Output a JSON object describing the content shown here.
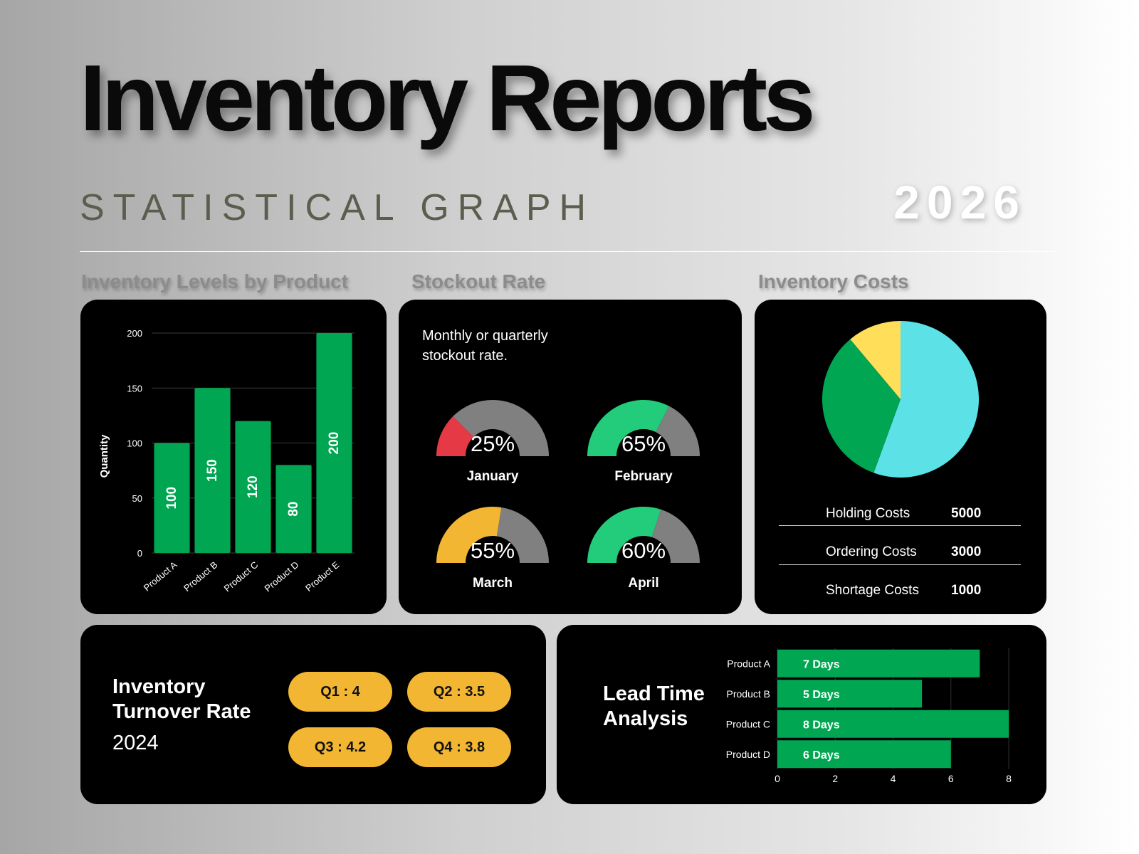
{
  "header": {
    "title": "Inventory Reports",
    "subtitle": "STATISTICAL GRAPH",
    "year": "2026"
  },
  "sections": {
    "levels_title": "Inventory Levels by Product",
    "stockout_title": "Stockout Rate",
    "costs_title": "Inventory Costs"
  },
  "stockout": {
    "description_line1": "Monthly or quarterly",
    "description_line2": "stockout rate."
  },
  "turnover": {
    "title_line1": "Inventory",
    "title_line2": "Turnover Rate",
    "year": "2024",
    "quarters": [
      {
        "label": "Q1 : 4"
      },
      {
        "label": "Q2 : 3.5"
      },
      {
        "label": "Q3 : 4.2"
      },
      {
        "label": "Q4 : 3.8"
      }
    ]
  },
  "lead_time": {
    "title_line1": "Lead Time",
    "title_line2": "Analysis"
  },
  "colors": {
    "green": "#00a651",
    "bright_green": "#22cc7a",
    "gray": "#808080",
    "red": "#e63946",
    "yellow": "#f2b632",
    "cyan": "#5ce1e6",
    "pie_yellow": "#ffde59"
  },
  "chart_data": [
    {
      "id": "levels",
      "type": "bar",
      "categories": [
        "Product A",
        "Product B",
        "Product C",
        "Product D",
        "Product E"
      ],
      "values": [
        100,
        150,
        120,
        80,
        200
      ],
      "data_labels": [
        "100",
        "150",
        "120",
        "80",
        "200"
      ],
      "ylabel": "Quantity",
      "ylim": [
        0,
        200
      ],
      "yticks": [
        0,
        50,
        100,
        150,
        200
      ],
      "grid": true
    },
    {
      "id": "stockout",
      "type": "gauge",
      "items": [
        {
          "label": "January",
          "value": 25,
          "display": "25%",
          "color": "#e63946"
        },
        {
          "label": "February",
          "value": 65,
          "display": "65%",
          "color": "#22cc7a"
        },
        {
          "label": "March",
          "value": 55,
          "display": "55%",
          "color": "#f2b632"
        },
        {
          "label": "April",
          "value": 60,
          "display": "60%",
          "color": "#22cc7a"
        }
      ],
      "max": 100
    },
    {
      "id": "costs",
      "type": "pie",
      "slices": [
        {
          "label": "Holding Costs",
          "value": 5000,
          "display": "5000",
          "color": "#5ce1e6"
        },
        {
          "label": "Ordering Costs",
          "value": 3000,
          "display": "3000",
          "color": "#00a651"
        },
        {
          "label": "Shortage Costs",
          "value": 1000,
          "display": "1000",
          "color": "#ffde59"
        }
      ]
    },
    {
      "id": "lead_time",
      "type": "bar",
      "orientation": "horizontal",
      "categories": [
        "Product A",
        "Product B",
        "Product C",
        "Product D"
      ],
      "values": [
        7,
        5,
        8,
        6
      ],
      "data_labels": [
        "7 Days",
        "5 Days",
        "8 Days",
        "6 Days"
      ],
      "xlim": [
        0,
        8
      ],
      "xticks": [
        0,
        2,
        4,
        6,
        8
      ],
      "grid": true
    }
  ]
}
